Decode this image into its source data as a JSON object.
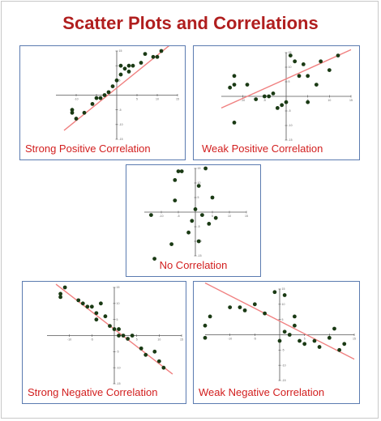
{
  "title": "Scatter Plots and Correlations",
  "chart_data": [
    {
      "type": "scatter",
      "title": "Strong Positive Correlation",
      "xlim": [
        -15,
        15
      ],
      "ylim": [
        -15,
        15
      ],
      "x_ticks": [
        -10,
        -5,
        5,
        10,
        15
      ],
      "y_ticks": [
        15,
        10,
        5,
        -5,
        -10,
        -15
      ],
      "points": [
        [
          -11,
          -5
        ],
        [
          -11,
          -6
        ],
        [
          -10,
          -8
        ],
        [
          -8,
          -6
        ],
        [
          -6,
          -3
        ],
        [
          -5,
          -1
        ],
        [
          -4,
          -1
        ],
        [
          -3,
          0
        ],
        [
          -2,
          1
        ],
        [
          -1,
          3
        ],
        [
          0,
          5
        ],
        [
          1,
          7
        ],
        [
          1,
          10
        ],
        [
          2,
          9
        ],
        [
          3,
          8
        ],
        [
          3,
          10
        ],
        [
          4,
          10
        ],
        [
          6,
          11
        ],
        [
          7,
          14
        ],
        [
          9,
          13
        ],
        [
          10,
          13
        ],
        [
          11,
          15
        ]
      ],
      "trend": [
        [
          -13,
          -12
        ],
        [
          14,
          18
        ]
      ],
      "point_color": "#1a3a14",
      "line_color": "#f08080"
    },
    {
      "type": "scatter",
      "title": "Weak Positive Correlation",
      "xlim": [
        -15,
        15
      ],
      "ylim": [
        -15,
        15
      ],
      "x_ticks": [
        -10,
        -5,
        5,
        10,
        15
      ],
      "y_ticks": [
        15,
        10,
        5,
        -5,
        -10,
        -15
      ],
      "points": [
        [
          -13,
          3
        ],
        [
          -12,
          7
        ],
        [
          -12,
          4
        ],
        [
          -12,
          -9
        ],
        [
          -9,
          4
        ],
        [
          -7,
          -1
        ],
        [
          -5,
          0
        ],
        [
          -4,
          0
        ],
        [
          -3,
          1
        ],
        [
          -2,
          -4
        ],
        [
          -1,
          -3
        ],
        [
          0,
          -2
        ],
        [
          1,
          14
        ],
        [
          2,
          12
        ],
        [
          3,
          7
        ],
        [
          4,
          11
        ],
        [
          5,
          -2
        ],
        [
          5,
          7
        ],
        [
          7,
          4
        ],
        [
          8,
          12
        ],
        [
          10,
          9
        ],
        [
          12,
          14
        ]
      ],
      "trend": [
        [
          -15,
          -4
        ],
        [
          15,
          16
        ]
      ],
      "point_color": "#1a3a14",
      "line_color": "#f08080"
    },
    {
      "type": "scatter",
      "title": "No Correlation",
      "xlim": [
        -15,
        15
      ],
      "ylim": [
        -15,
        15
      ],
      "x_ticks": [
        -10,
        -5,
        5,
        10,
        15
      ],
      "y_ticks": [
        15,
        10,
        5,
        -5,
        -10,
        -15
      ],
      "points": [
        [
          -13,
          -1
        ],
        [
          -12,
          -16
        ],
        [
          -7,
          -11
        ],
        [
          -6,
          11
        ],
        [
          -6,
          4
        ],
        [
          -5,
          14
        ],
        [
          -4,
          14
        ],
        [
          -2,
          -7
        ],
        [
          -1,
          -3
        ],
        [
          0,
          1
        ],
        [
          1,
          9
        ],
        [
          1,
          -10
        ],
        [
          2,
          -1
        ],
        [
          3,
          15
        ],
        [
          4,
          -4
        ],
        [
          5,
          5
        ],
        [
          6,
          -2
        ]
      ],
      "trend": [],
      "point_color": "#1a3a14",
      "line_color": "#f08080"
    },
    {
      "type": "scatter",
      "title": "Strong Negative Correlation",
      "xlim": [
        -15,
        15
      ],
      "ylim": [
        -15,
        15
      ],
      "x_ticks": [
        -10,
        -5,
        5,
        10,
        15
      ],
      "y_ticks": [
        15,
        10,
        5,
        -5,
        -10,
        -15
      ],
      "points": [
        [
          -12,
          12
        ],
        [
          -12,
          13
        ],
        [
          -11,
          15
        ],
        [
          -8,
          11
        ],
        [
          -7,
          10
        ],
        [
          -6,
          9
        ],
        [
          -5,
          9
        ],
        [
          -4,
          7
        ],
        [
          -4,
          5
        ],
        [
          -3,
          10
        ],
        [
          -2,
          6
        ],
        [
          -1,
          3
        ],
        [
          0,
          2
        ],
        [
          1,
          0
        ],
        [
          1,
          2
        ],
        [
          2,
          0
        ],
        [
          3,
          -1
        ],
        [
          4,
          0
        ],
        [
          6,
          -4
        ],
        [
          7,
          -6
        ],
        [
          9,
          -5
        ],
        [
          10,
          -8
        ],
        [
          11,
          -10
        ]
      ],
      "trend": [
        [
          -13,
          16
        ],
        [
          13,
          -12
        ]
      ],
      "point_color": "#1a3a14",
      "line_color": "#f08080"
    },
    {
      "type": "scatter",
      "title": "Weak Negative Correlation",
      "xlim": [
        -15,
        15
      ],
      "ylim": [
        -15,
        15
      ],
      "x_ticks": [
        -10,
        -5,
        5,
        10,
        15
      ],
      "y_ticks": [
        15,
        10,
        5,
        -5,
        -10,
        -15
      ],
      "points": [
        [
          -15,
          3
        ],
        [
          -15,
          -1
        ],
        [
          -14,
          6
        ],
        [
          -10,
          9
        ],
        [
          -8,
          9
        ],
        [
          -7,
          8
        ],
        [
          -5,
          10
        ],
        [
          -3,
          7
        ],
        [
          -1,
          14
        ],
        [
          0,
          -2
        ],
        [
          1,
          13
        ],
        [
          1,
          1
        ],
        [
          2,
          0
        ],
        [
          3,
          6
        ],
        [
          3,
          3
        ],
        [
          4,
          -2
        ],
        [
          5,
          -3
        ],
        [
          7,
          -2
        ],
        [
          8,
          -4
        ],
        [
          10,
          -1
        ],
        [
          11,
          2
        ],
        [
          12,
          -5
        ],
        [
          13,
          -3
        ]
      ],
      "trend": [
        [
          -15,
          17
        ],
        [
          15,
          -8
        ]
      ],
      "point_color": "#1a3a14",
      "line_color": "#f08080"
    }
  ]
}
